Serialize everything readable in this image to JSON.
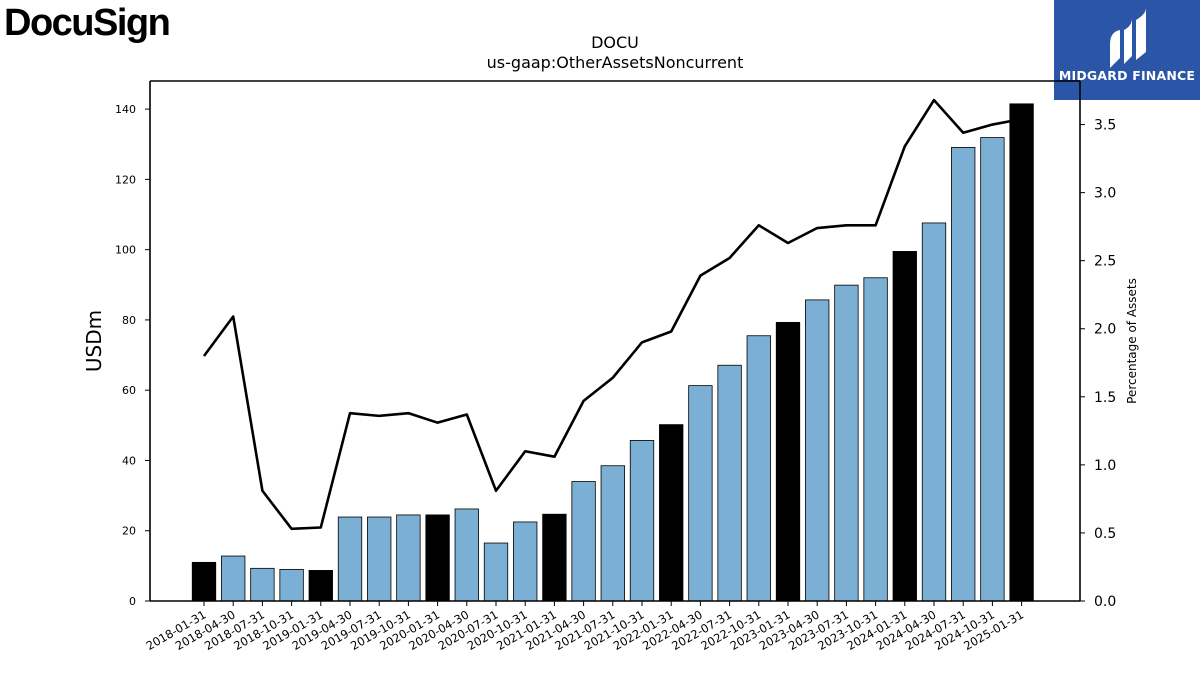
{
  "brand": {
    "logo_text": "DocuSign",
    "badge_text": "MIDGARD FINANCE",
    "badge_color": "#2b55a6"
  },
  "colors": {
    "bar_default": "#7bafd4",
    "bar_highlight": "#000000",
    "line": "#000000"
  },
  "chart_data": {
    "type": "bar",
    "title": "DOCU",
    "subtitle": "us-gaap:OtherAssetsNoncurrent",
    "ylabel": "USDm",
    "ylabel_right": "Percentage of Assets",
    "ylim": [
      0,
      148
    ],
    "ylim_right": [
      0,
      3.82
    ],
    "yticks": [
      0,
      20,
      40,
      60,
      80,
      100,
      120,
      140
    ],
    "yticks_right": [
      "0.0",
      "0.5",
      "1.0",
      "1.5",
      "2.0",
      "2.5",
      "3.0",
      "3.5"
    ],
    "categories": [
      "2018-01-31",
      "2018-04-30",
      "2018-07-31",
      "2018-10-31",
      "2019-01-31",
      "2019-04-30",
      "2019-07-31",
      "2019-10-31",
      "2020-01-31",
      "2020-04-30",
      "2020-07-31",
      "2020-10-31",
      "2021-01-31",
      "2021-04-30",
      "2021-07-31",
      "2021-10-31",
      "2022-01-31",
      "2022-04-30",
      "2022-07-31",
      "2022-10-31",
      "2023-01-31",
      "2023-04-30",
      "2023-07-31",
      "2023-10-31",
      "2024-01-31",
      "2024-04-30",
      "2024-07-31",
      "2024-10-31",
      "2025-01-31"
    ],
    "series": [
      {
        "kind": "bar",
        "axis": "left",
        "values": [
          11.0,
          12.8,
          9.3,
          9.0,
          8.7,
          23.9,
          23.9,
          24.5,
          24.5,
          26.2,
          16.5,
          22.5,
          24.7,
          34.0,
          38.5,
          45.7,
          50.2,
          61.3,
          67.1,
          75.5,
          79.3,
          85.7,
          89.9,
          92.0,
          99.5,
          107.6,
          129.1,
          131.9,
          141.5
        ],
        "highlighted": [
          true,
          false,
          false,
          false,
          true,
          false,
          false,
          false,
          true,
          false,
          false,
          false,
          true,
          false,
          false,
          false,
          true,
          false,
          false,
          false,
          true,
          false,
          false,
          false,
          true,
          false,
          false,
          false,
          true
        ]
      },
      {
        "kind": "line",
        "axis": "right",
        "values": [
          1.8,
          2.09,
          0.81,
          0.53,
          0.54,
          1.38,
          1.36,
          1.38,
          1.31,
          1.37,
          0.81,
          1.1,
          1.06,
          1.47,
          1.64,
          1.9,
          1.98,
          2.39,
          2.52,
          2.76,
          2.63,
          2.74,
          2.76,
          2.76,
          3.34,
          3.68,
          3.44,
          3.5,
          3.54
        ]
      }
    ]
  }
}
